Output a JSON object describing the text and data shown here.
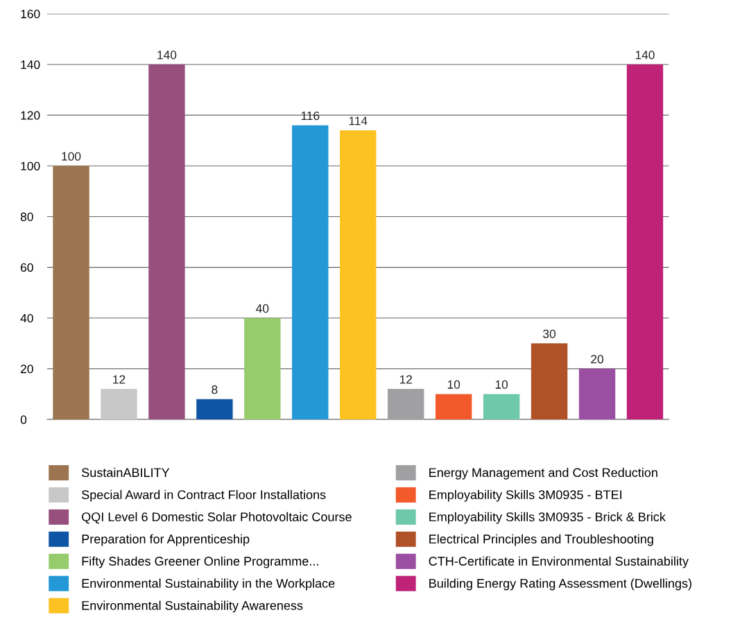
{
  "chart_data": {
    "type": "bar",
    "categories": [
      null,
      null,
      null,
      null,
      null,
      null,
      null,
      null,
      null,
      null,
      null,
      null,
      null
    ],
    "series": [
      {
        "name": "SustainABILITY",
        "color": "#9c7550",
        "values": [
          100,
          null,
          null,
          null,
          null,
          null,
          null,
          null,
          null,
          null,
          null,
          null,
          null
        ]
      },
      {
        "name": "Special Award in Contract Floor Installations",
        "color": "#c8c8c8",
        "values": [
          null,
          12,
          null,
          null,
          null,
          null,
          null,
          null,
          null,
          null,
          null,
          null,
          null
        ]
      },
      {
        "name": "QQI Level 6 Domestic Solar Photovoltaic Course",
        "color": "#97507e",
        "values": [
          null,
          null,
          140,
          null,
          null,
          null,
          null,
          null,
          null,
          null,
          null,
          null,
          null
        ]
      },
      {
        "name": "Preparation for Apprenticeship",
        "color": "#0f55a5",
        "values": [
          null,
          null,
          null,
          8,
          null,
          null,
          null,
          null,
          null,
          null,
          null,
          null,
          null
        ]
      },
      {
        "name": "Fifty Shades Greener Online Programme...",
        "color": "#96cc6b",
        "values": [
          null,
          null,
          null,
          null,
          40,
          null,
          null,
          null,
          null,
          null,
          null,
          null,
          null
        ]
      },
      {
        "name": "Environmental Sustainability in the Workplace",
        "color": "#2497d6",
        "values": [
          null,
          null,
          null,
          null,
          null,
          116,
          null,
          null,
          null,
          null,
          null,
          null,
          null
        ]
      },
      {
        "name": "Environmental Sustainability Awareness",
        "color": "#fcc222",
        "values": [
          null,
          null,
          null,
          null,
          null,
          null,
          114,
          null,
          null,
          null,
          null,
          null,
          null
        ]
      },
      {
        "name": "Energy Management and Cost Reduction",
        "color": "#a0a0a2",
        "values": [
          null,
          null,
          null,
          null,
          null,
          null,
          null,
          12,
          null,
          null,
          null,
          null,
          null
        ]
      },
      {
        "name": "Employability Skills 3M0935 - BTEI",
        "color": "#f25a2b",
        "values": [
          null,
          null,
          null,
          null,
          null,
          null,
          null,
          null,
          10,
          null,
          null,
          null,
          null
        ]
      },
      {
        "name": "Employability Skills 3M0935 - Brick & Brick",
        "color": "#6ec8aa",
        "values": [
          null,
          null,
          null,
          null,
          null,
          null,
          null,
          null,
          null,
          10,
          null,
          null,
          null
        ]
      },
      {
        "name": "Electrical Principles and Troubleshooting",
        "color": "#b05128",
        "values": [
          null,
          null,
          null,
          null,
          null,
          null,
          null,
          null,
          null,
          null,
          30,
          null,
          null
        ]
      },
      {
        "name": "CTH-Certificate in Environmental Sustainability",
        "color": "#9b4fa3",
        "values": [
          null,
          null,
          null,
          null,
          null,
          null,
          null,
          null,
          null,
          null,
          null,
          20,
          null
        ]
      },
      {
        "name": "Building Energy Rating Assessment (Dwellings)",
        "color": "#be2378",
        "values": [
          null,
          null,
          null,
          null,
          null,
          null,
          null,
          null,
          null,
          null,
          null,
          null,
          140
        ]
      }
    ],
    "ylim": [
      0,
      160
    ],
    "yticks": [
      0,
      20,
      40,
      60,
      80,
      100,
      120,
      140,
      160
    ],
    "grid": "y",
    "legend": "bottom",
    "data_labels": true
  }
}
